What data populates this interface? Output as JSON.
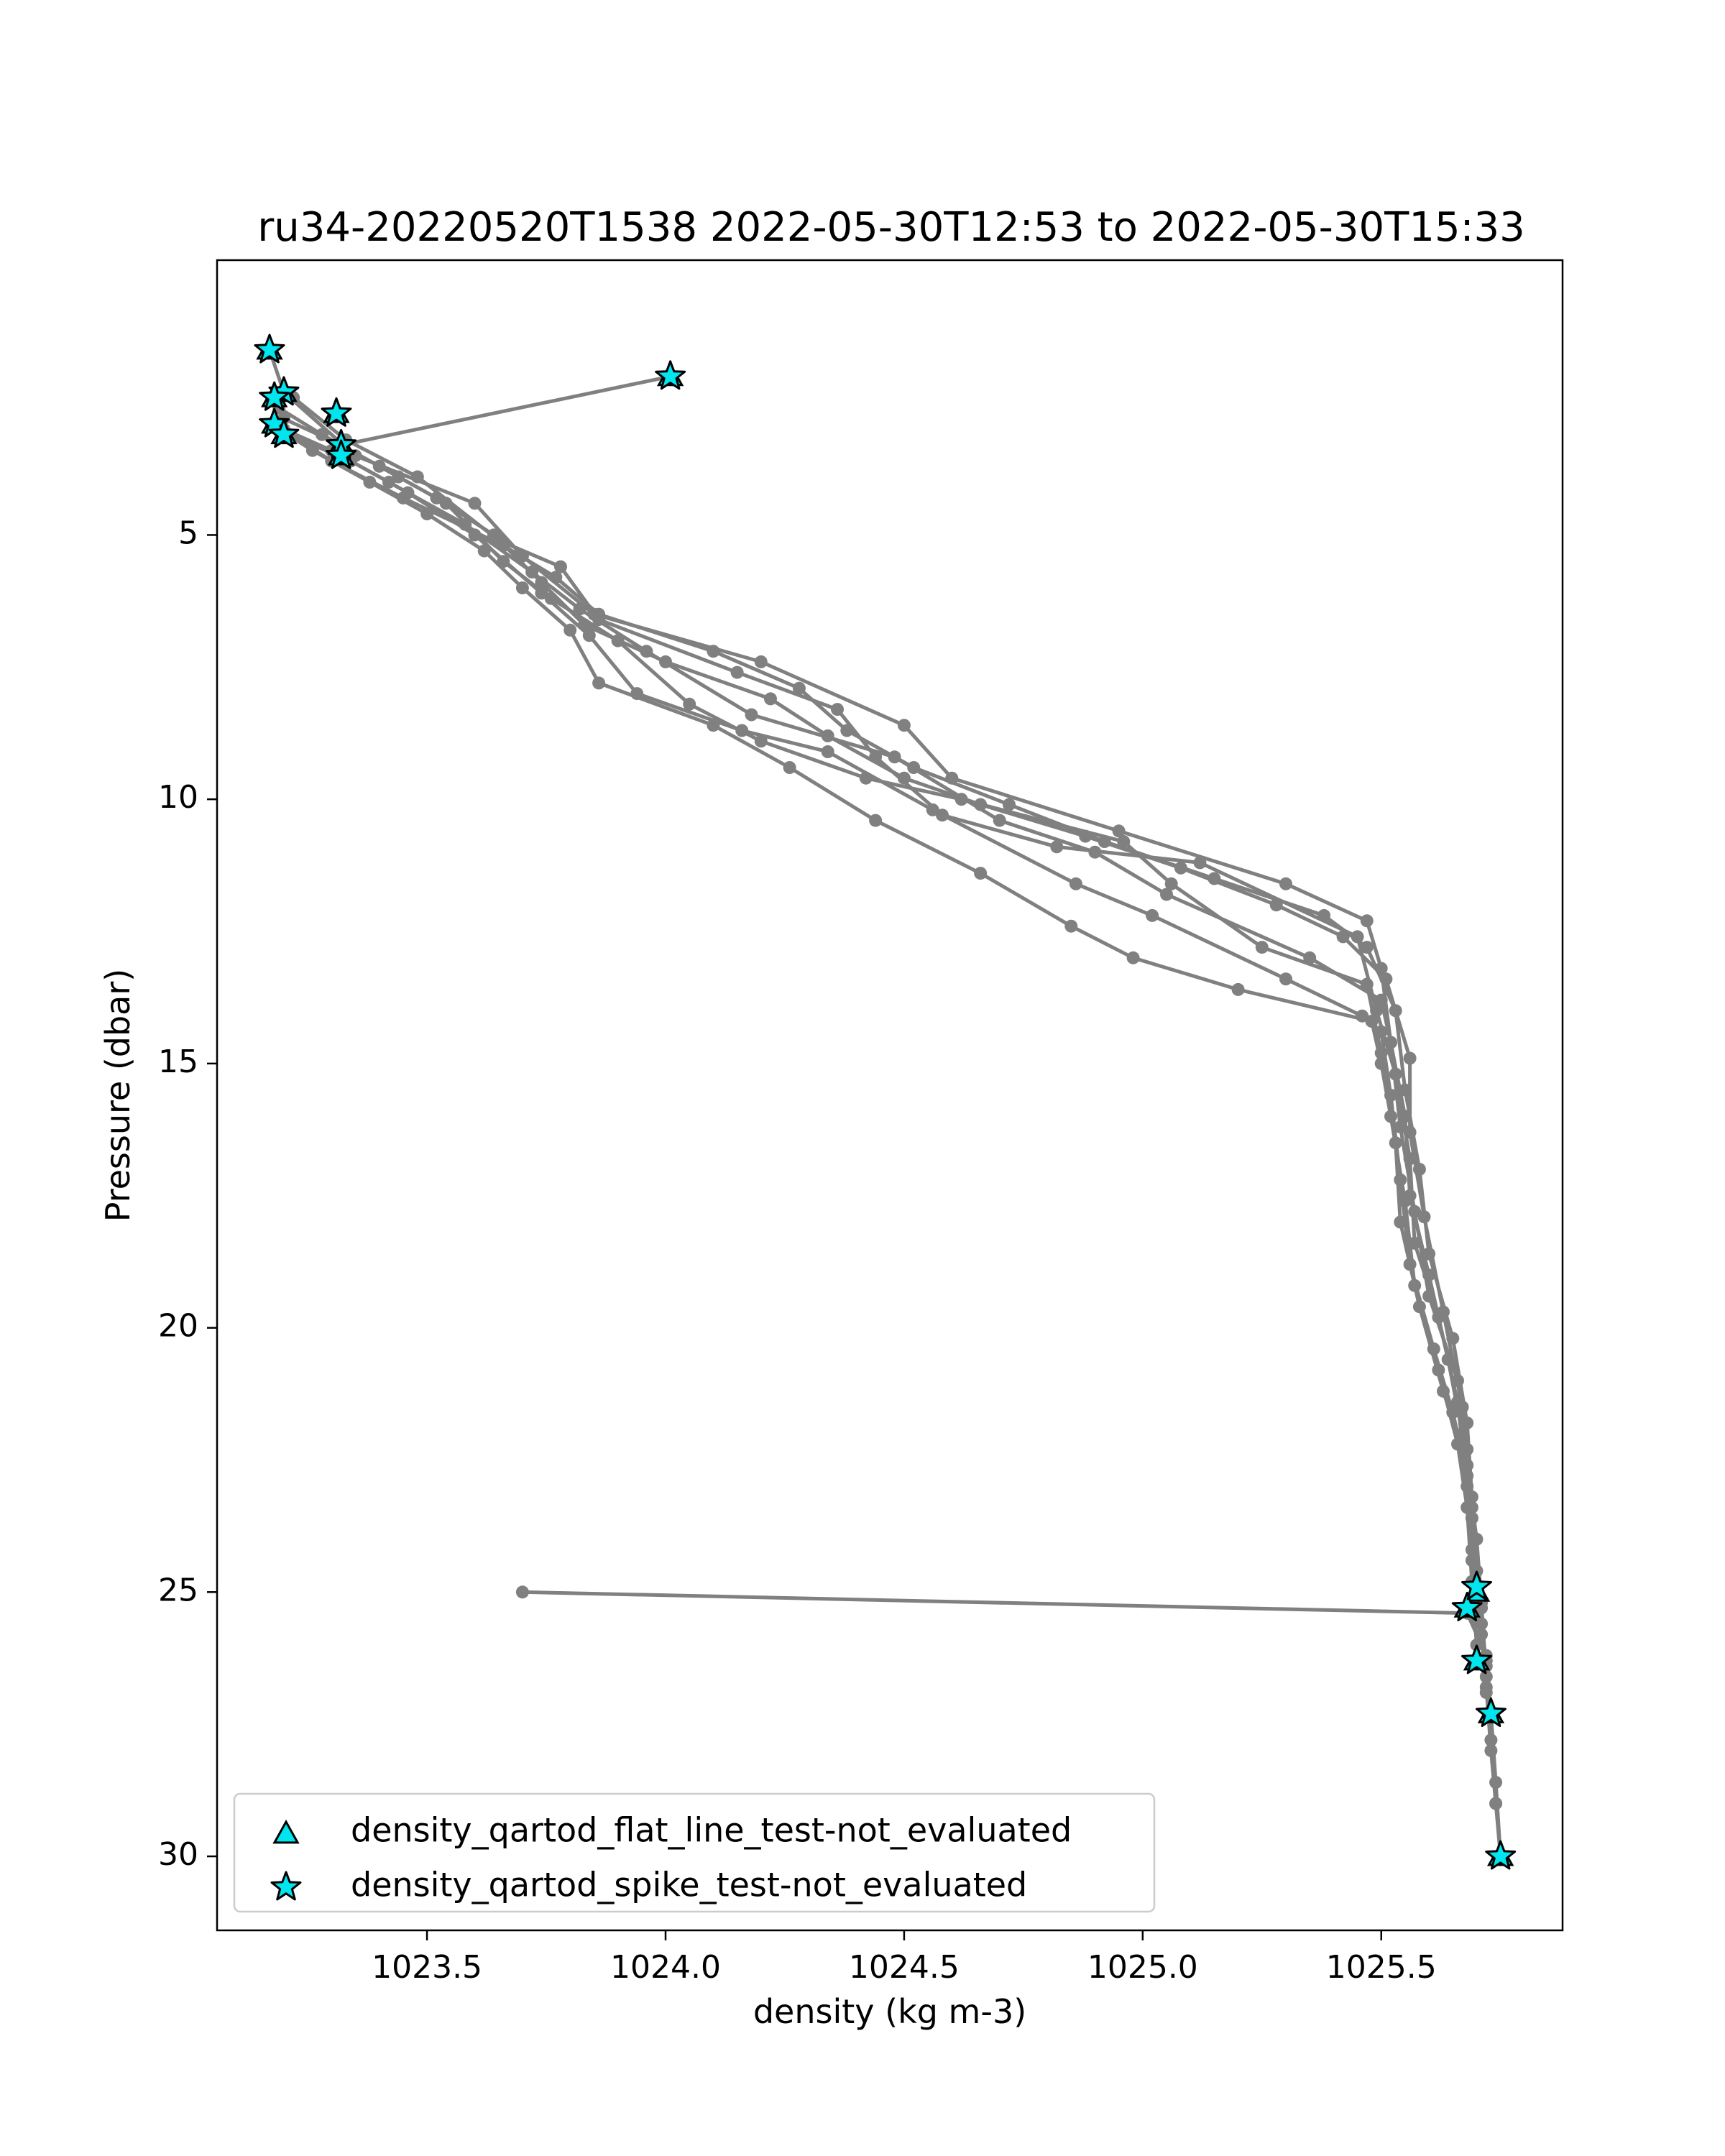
{
  "colors": {
    "line": "#808080",
    "marker_fill": "#00e5ee",
    "marker_edge": "#000000",
    "axes": "#000000",
    "background": "#ffffff"
  },
  "chart_data": {
    "type": "line",
    "title": "ru34-20220520T1538 2022-05-30T12:53 to 2022-05-30T15:33",
    "xlabel": "density (kg m-3)",
    "ylabel": "Pressure (dbar)",
    "xlim": [
      1023.06,
      1025.88
    ],
    "ylim": [
      31.4,
      -0.2
    ],
    "y_inverted": true,
    "grid": false,
    "x_ticks": [
      {
        "value": 1023.5,
        "label": "1023.5"
      },
      {
        "value": 1024.0,
        "label": "1024.0"
      },
      {
        "value": 1024.5,
        "label": "1024.5"
      },
      {
        "value": 1025.0,
        "label": "1025.0"
      },
      {
        "value": 1025.5,
        "label": "1025.5"
      }
    ],
    "y_ticks": [
      {
        "value": 5,
        "label": "5"
      },
      {
        "value": 10,
        "label": "10"
      },
      {
        "value": 15,
        "label": "15"
      },
      {
        "value": 20,
        "label": "20"
      },
      {
        "value": 25,
        "label": "25"
      },
      {
        "value": 30,
        "label": "30"
      }
    ],
    "profiles": [
      [
        [
          1023.32,
          3.3
        ],
        [
          1024.01,
          2.0
        ]
      ],
      [
        [
          1023.17,
          1.5
        ],
        [
          1023.2,
          2.3
        ],
        [
          1023.35,
          3.5
        ],
        [
          1023.6,
          4.4
        ],
        [
          1023.7,
          5.4
        ],
        [
          1023.85,
          6.5
        ],
        [
          1024.2,
          7.4
        ],
        [
          1024.5,
          8.6
        ],
        [
          1024.6,
          9.6
        ],
        [
          1024.95,
          10.6
        ],
        [
          1025.3,
          11.6
        ],
        [
          1025.47,
          12.3
        ],
        [
          1025.5,
          13.2
        ],
        [
          1025.52,
          14.6
        ],
        [
          1025.55,
          16.0
        ],
        [
          1025.56,
          17.5
        ],
        [
          1025.6,
          19.0
        ],
        [
          1025.64,
          20.6
        ],
        [
          1025.67,
          22.0
        ],
        [
          1025.69,
          23.4
        ],
        [
          1025.7,
          24.9
        ]
      ],
      [
        [
          1023.7,
          25.0
        ],
        [
          1025.68,
          25.4
        ],
        [
          1025.72,
          26.2
        ],
        [
          1025.73,
          27.3
        ],
        [
          1025.74,
          28.6
        ],
        [
          1025.75,
          30.0
        ]
      ],
      [
        [
          1025.75,
          30.0
        ],
        [
          1025.74,
          29.0
        ],
        [
          1025.73,
          27.8
        ],
        [
          1025.72,
          26.3
        ],
        [
          1025.7,
          25.0
        ],
        [
          1025.69,
          23.6
        ],
        [
          1025.68,
          22.3
        ],
        [
          1025.66,
          21.0
        ],
        [
          1025.6,
          19.4
        ],
        [
          1025.57,
          17.8
        ],
        [
          1025.54,
          16.2
        ],
        [
          1025.52,
          14.6
        ],
        [
          1025.5,
          13.8
        ],
        [
          1025.35,
          13.0
        ],
        [
          1025.05,
          11.8
        ],
        [
          1024.9,
          11.0
        ],
        [
          1024.7,
          10.4
        ],
        [
          1024.48,
          9.2
        ],
        [
          1024.18,
          8.4
        ],
        [
          1023.96,
          7.2
        ],
        [
          1023.82,
          6.4
        ],
        [
          1023.72,
          5.7
        ],
        [
          1023.58,
          4.8
        ],
        [
          1023.42,
          4.0
        ],
        [
          1023.3,
          3.4
        ],
        [
          1023.2,
          3.0
        ]
      ],
      [
        [
          1023.18,
          2.9
        ],
        [
          1023.3,
          3.6
        ],
        [
          1023.45,
          4.3
        ],
        [
          1023.66,
          5.2
        ],
        [
          1023.77,
          5.8
        ],
        [
          1023.86,
          6.5
        ],
        [
          1024.1,
          7.2
        ],
        [
          1024.28,
          7.9
        ],
        [
          1024.38,
          8.7
        ],
        [
          1024.52,
          9.4
        ],
        [
          1024.72,
          10.1
        ],
        [
          1024.92,
          10.8
        ],
        [
          1025.15,
          11.5
        ],
        [
          1025.38,
          12.2
        ],
        [
          1025.47,
          12.8
        ],
        [
          1025.53,
          14.0
        ],
        [
          1025.55,
          15.5
        ],
        [
          1025.58,
          17.0
        ],
        [
          1025.6,
          18.6
        ],
        [
          1025.65,
          20.2
        ],
        [
          1025.68,
          21.8
        ],
        [
          1025.69,
          23.2
        ],
        [
          1025.7,
          24.6
        ],
        [
          1025.71,
          25.6
        ],
        [
          1025.72,
          26.4
        ]
      ],
      [
        [
          1025.72,
          26.6
        ],
        [
          1025.71,
          25.2
        ],
        [
          1025.7,
          24.0
        ],
        [
          1025.68,
          22.6
        ],
        [
          1025.63,
          21.2
        ],
        [
          1025.58,
          19.6
        ],
        [
          1025.54,
          18.0
        ],
        [
          1025.53,
          16.5
        ],
        [
          1025.5,
          15.0
        ],
        [
          1025.48,
          14.2
        ],
        [
          1025.2,
          13.6
        ],
        [
          1024.98,
          13.0
        ],
        [
          1024.85,
          12.4
        ],
        [
          1024.66,
          11.4
        ],
        [
          1024.44,
          10.4
        ],
        [
          1024.26,
          9.4
        ],
        [
          1024.1,
          8.6
        ],
        [
          1023.86,
          7.8
        ],
        [
          1023.8,
          6.8
        ],
        [
          1023.7,
          6.0
        ],
        [
          1023.62,
          5.3
        ],
        [
          1023.5,
          4.6
        ],
        [
          1023.38,
          4.0
        ],
        [
          1023.26,
          3.4
        ],
        [
          1023.19,
          3.0
        ]
      ],
      [
        [
          1023.22,
          2.4
        ],
        [
          1023.33,
          3.2
        ],
        [
          1023.48,
          3.9
        ],
        [
          1023.65,
          5.1
        ],
        [
          1023.78,
          5.6
        ],
        [
          1023.86,
          6.6
        ],
        [
          1024.15,
          7.6
        ],
        [
          1024.36,
          8.3
        ],
        [
          1024.44,
          9.2
        ],
        [
          1024.58,
          10.3
        ],
        [
          1024.82,
          10.9
        ],
        [
          1025.12,
          11.2
        ],
        [
          1025.45,
          12.6
        ],
        [
          1025.49,
          14.0
        ],
        [
          1025.53,
          15.2
        ],
        [
          1025.56,
          16.8
        ],
        [
          1025.57,
          18.4
        ],
        [
          1025.62,
          19.8
        ],
        [
          1025.66,
          21.4
        ],
        [
          1025.68,
          23.0
        ],
        [
          1025.69,
          24.4
        ],
        [
          1025.7,
          25.5
        ]
      ],
      [
        [
          1025.7,
          26.0
        ],
        [
          1025.69,
          24.8
        ],
        [
          1025.68,
          23.4
        ],
        [
          1025.66,
          22.2
        ],
        [
          1025.62,
          20.8
        ],
        [
          1025.57,
          19.2
        ],
        [
          1025.55,
          17.6
        ],
        [
          1025.52,
          16.0
        ],
        [
          1025.5,
          14.8
        ],
        [
          1025.47,
          13.5
        ],
        [
          1025.25,
          12.8
        ],
        [
          1025.06,
          11.6
        ],
        [
          1024.96,
          10.8
        ],
        [
          1024.62,
          10.0
        ],
        [
          1024.42,
          9.6
        ],
        [
          1024.2,
          8.9
        ],
        [
          1024.05,
          8.2
        ],
        [
          1023.9,
          7.0
        ],
        [
          1023.76,
          6.2
        ],
        [
          1023.66,
          5.5
        ],
        [
          1023.54,
          4.4
        ],
        [
          1023.44,
          3.9
        ],
        [
          1023.32,
          3.3
        ],
        [
          1023.2,
          2.8
        ]
      ],
      [
        [
          1023.19,
          2.6
        ],
        [
          1023.28,
          3.1
        ],
        [
          1023.4,
          3.7
        ],
        [
          1023.52,
          4.3
        ],
        [
          1023.64,
          5.0
        ],
        [
          1023.74,
          5.9
        ],
        [
          1023.83,
          6.7
        ],
        [
          1024.0,
          7.4
        ],
        [
          1024.22,
          8.1
        ],
        [
          1024.34,
          8.8
        ],
        [
          1024.5,
          9.6
        ],
        [
          1024.66,
          10.1
        ],
        [
          1024.88,
          10.7
        ],
        [
          1025.08,
          11.3
        ],
        [
          1025.28,
          12.0
        ],
        [
          1025.42,
          12.6
        ],
        [
          1025.51,
          13.4
        ],
        [
          1025.56,
          14.9
        ],
        [
          1025.56,
          16.3
        ],
        [
          1025.59,
          17.9
        ],
        [
          1025.63,
          19.7
        ],
        [
          1025.67,
          21.5
        ],
        [
          1025.69,
          23.6
        ],
        [
          1025.71,
          25.3
        ],
        [
          1025.72,
          26.9
        ]
      ],
      [
        [
          1025.74,
          29.0
        ],
        [
          1025.73,
          28.0
        ],
        [
          1025.72,
          26.8
        ],
        [
          1025.71,
          25.8
        ],
        [
          1025.69,
          24.2
        ],
        [
          1025.68,
          22.8
        ],
        [
          1025.65,
          21.6
        ],
        [
          1025.61,
          20.4
        ],
        [
          1025.56,
          18.8
        ],
        [
          1025.54,
          17.2
        ],
        [
          1025.52,
          15.6
        ],
        [
          1025.5,
          14.4
        ],
        [
          1025.46,
          14.1
        ],
        [
          1025.3,
          13.4
        ],
        [
          1025.02,
          12.2
        ],
        [
          1024.86,
          11.6
        ],
        [
          1024.56,
          10.2
        ],
        [
          1024.34,
          9.1
        ],
        [
          1024.16,
          8.7
        ],
        [
          1023.94,
          8.0
        ],
        [
          1023.84,
          6.9
        ],
        [
          1023.74,
          6.1
        ],
        [
          1023.6,
          5.0
        ],
        [
          1023.46,
          4.2
        ],
        [
          1023.34,
          3.6
        ],
        [
          1023.21,
          3.1
        ]
      ]
    ],
    "flags": {
      "flat_line": [
        [
          1023.17,
          1.5
        ],
        [
          1023.2,
          2.3
        ],
        [
          1023.18,
          2.4
        ],
        [
          1023.18,
          2.9
        ],
        [
          1023.2,
          3.1
        ],
        [
          1023.31,
          2.7
        ],
        [
          1023.32,
          3.3
        ],
        [
          1023.32,
          3.5
        ],
        [
          1024.01,
          2.0
        ],
        [
          1025.68,
          25.3
        ],
        [
          1025.7,
          25.0
        ],
        [
          1025.7,
          26.3
        ],
        [
          1025.73,
          27.3
        ],
        [
          1025.75,
          30.0
        ]
      ],
      "spike": [
        [
          1023.17,
          1.5
        ],
        [
          1023.2,
          2.3
        ],
        [
          1023.18,
          2.4
        ],
        [
          1023.18,
          2.9
        ],
        [
          1023.2,
          3.1
        ],
        [
          1023.31,
          2.7
        ],
        [
          1023.32,
          3.3
        ],
        [
          1023.32,
          3.5
        ],
        [
          1024.01,
          2.0
        ],
        [
          1025.68,
          25.3
        ],
        [
          1025.7,
          24.9
        ],
        [
          1025.7,
          26.3
        ],
        [
          1025.73,
          27.3
        ],
        [
          1025.75,
          30.0
        ]
      ]
    },
    "legend": {
      "position": "lower left",
      "entries": [
        {
          "marker": "triangle",
          "label": "density_qartod_flat_line_test-not_evaluated"
        },
        {
          "marker": "star",
          "label": "density_qartod_spike_test-not_evaluated"
        }
      ]
    }
  }
}
